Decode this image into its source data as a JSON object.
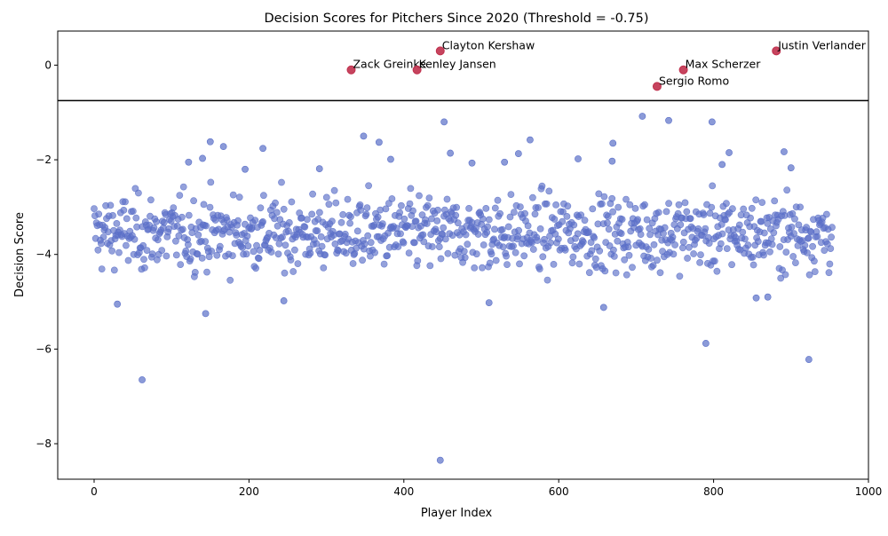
{
  "chart_data": {
    "type": "scatter",
    "title": "Decision Scores for Pitchers Since 2020 (Threshold = -0.75)",
    "xlabel": "Player Index",
    "ylabel": "Decision Score",
    "xlim": [
      -47,
      1000
    ],
    "ylim": [
      -8.75,
      0.72
    ],
    "xticks": [
      0,
      200,
      400,
      600,
      800,
      1000
    ],
    "yticks": [
      -8,
      -6,
      -4,
      -2,
      0
    ],
    "threshold": -0.75,
    "grid": false,
    "colors": {
      "normal": "#5a6fc8",
      "highlight": "#c0304d",
      "threshold_line": "#000000"
    },
    "highlighted": [
      {
        "name": "Clayton Kershaw",
        "x": 447,
        "y": 0.3
      },
      {
        "name": "Zack Greinke",
        "x": 332,
        "y": -0.1
      },
      {
        "name": "Kenley Jansen",
        "x": 417,
        "y": -0.1
      },
      {
        "name": "Max Scherzer",
        "x": 761,
        "y": -0.1
      },
      {
        "name": "Sergio Romo",
        "x": 727,
        "y": -0.45
      },
      {
        "name": "Justin Verlander",
        "x": 881,
        "y": 0.3
      }
    ],
    "outliers": [
      {
        "x": 447,
        "y": -8.35
      },
      {
        "x": 62,
        "y": -6.65
      },
      {
        "x": 923,
        "y": -6.22
      },
      {
        "x": 790,
        "y": -5.88
      },
      {
        "x": 30,
        "y": -5.05
      },
      {
        "x": 144,
        "y": -5.25
      },
      {
        "x": 510,
        "y": -5.02
      },
      {
        "x": 658,
        "y": -5.12
      },
      {
        "x": 245,
        "y": -4.98
      },
      {
        "x": 870,
        "y": -4.9
      },
      {
        "x": 855,
        "y": -4.92
      },
      {
        "x": 452,
        "y": -1.2
      },
      {
        "x": 708,
        "y": -1.08
      },
      {
        "x": 742,
        "y": -1.17
      },
      {
        "x": 798,
        "y": -1.2
      },
      {
        "x": 348,
        "y": -1.5
      },
      {
        "x": 563,
        "y": -1.58
      },
      {
        "x": 150,
        "y": -1.62
      },
      {
        "x": 368,
        "y": -1.63
      },
      {
        "x": 670,
        "y": -1.65
      },
      {
        "x": 167,
        "y": -1.72
      },
      {
        "x": 218,
        "y": -1.76
      },
      {
        "x": 820,
        "y": -1.85
      },
      {
        "x": 891,
        "y": -1.83
      },
      {
        "x": 460,
        "y": -1.86
      },
      {
        "x": 548,
        "y": -1.87
      },
      {
        "x": 383,
        "y": -1.99
      },
      {
        "x": 625,
        "y": -1.98
      },
      {
        "x": 140,
        "y": -1.97
      },
      {
        "x": 122,
        "y": -2.05
      },
      {
        "x": 488,
        "y": -2.07
      },
      {
        "x": 530,
        "y": -2.05
      },
      {
        "x": 669,
        "y": -2.03
      },
      {
        "x": 811,
        "y": -2.1
      },
      {
        "x": 900,
        "y": -2.17
      },
      {
        "x": 291,
        "y": -2.19
      },
      {
        "x": 195,
        "y": -2.2
      }
    ],
    "cluster": {
      "n": 950,
      "x_range": [
        0,
        953
      ],
      "y_center": -3.55,
      "y_spread": [
        -4.7,
        -2.35
      ],
      "description": "dense band of ~950 players with decision scores mostly between -4.7 and -2.4"
    }
  }
}
